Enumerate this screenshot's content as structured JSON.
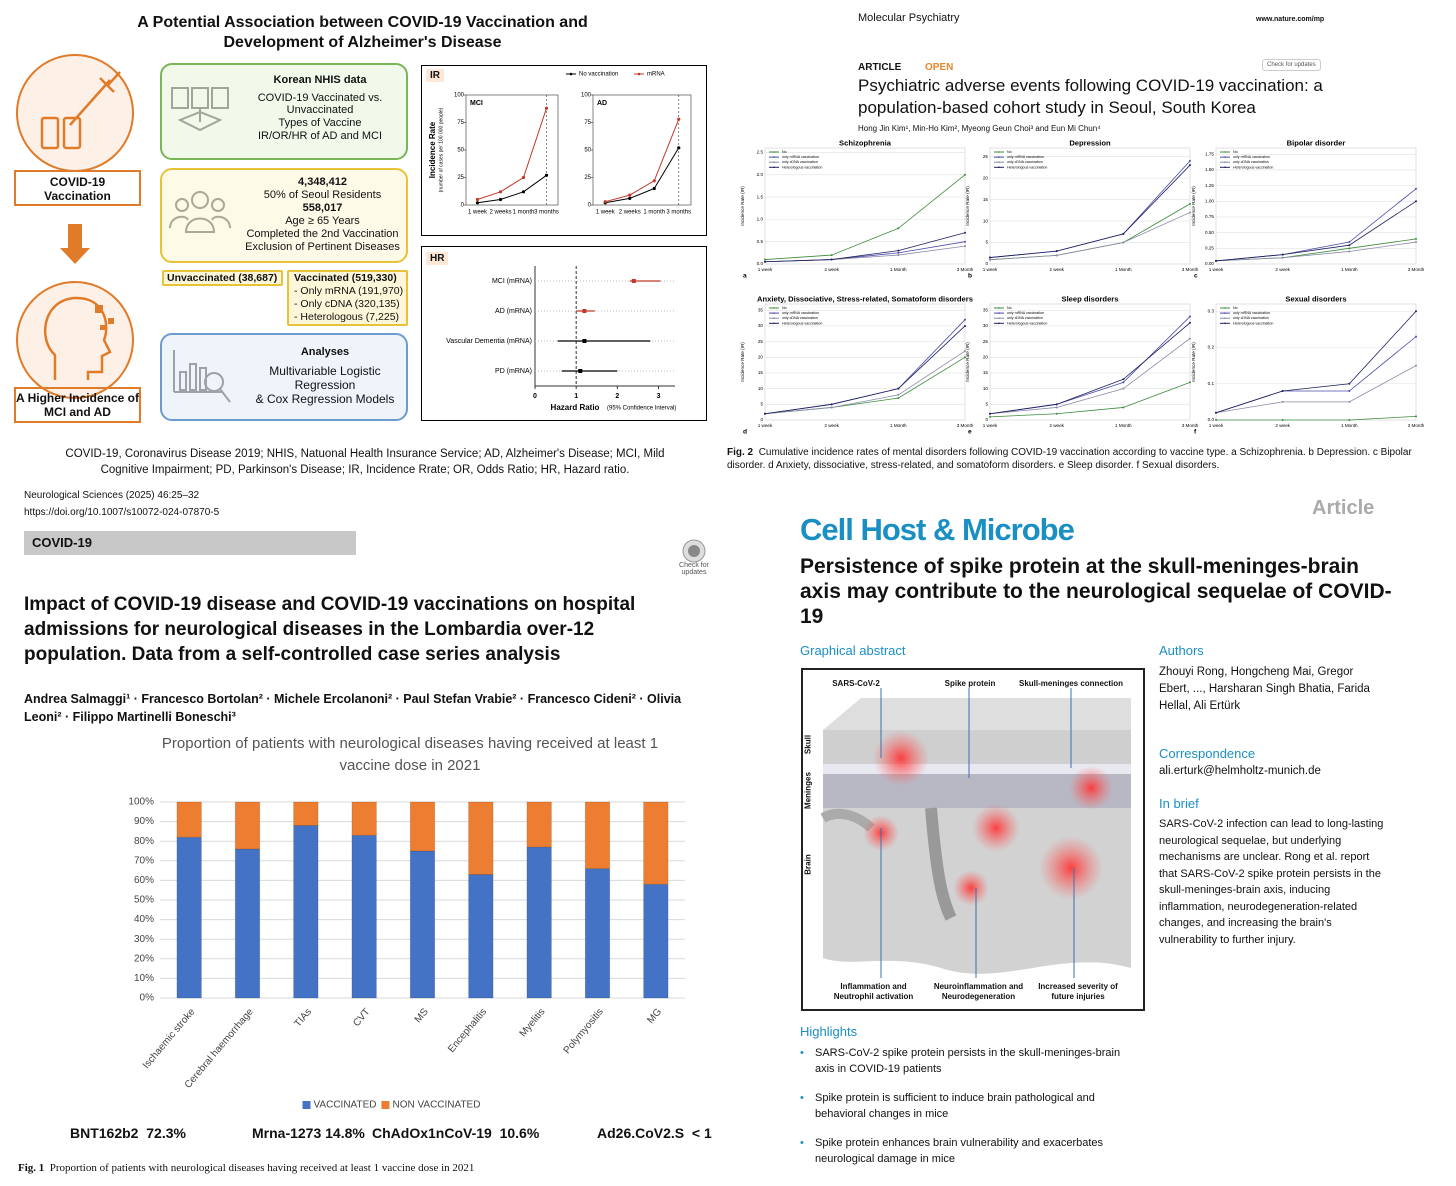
{
  "infographic": {
    "title": "A Potential Association between COVID-19 Vaccination and Development of Alzheimer's Disease",
    "exposure": "COVID-19 Vaccination",
    "outcome": "A Higher Incidence of MCI and AD",
    "data_box": {
      "heading": "Korean NHIS data",
      "lines": [
        "COVID-19 Vaccinated vs. Unvaccinated",
        "Types of Vaccine",
        "IR/OR/HR of AD and MCI"
      ]
    },
    "population_box": {
      "total": "4,348,412",
      "total_note": "50% of Seoul Residents",
      "cohort": "558,017",
      "criteria": [
        "Age ≥ 65 Years",
        "Completed the 2nd Vaccination",
        "Exclusion of Pertinent Diseases"
      ]
    },
    "unvaccinated": "Unvaccinated (38,687)",
    "vaccinated": {
      "heading": "Vaccinated (519,330)",
      "groups": [
        "- Only mRNA (191,970)",
        "- Only cDNA (320,135)",
        "- Heterologous (7,225)"
      ]
    },
    "analysis_box": {
      "heading": "Analyses",
      "lines": [
        "Multivariable Logistic Regression",
        "& Cox Regression Models"
      ]
    },
    "ir_label": "IR",
    "hr_label": "HR",
    "footnote": "COVID-19, Coronavirus Disease 2019; NHIS, Natuonal Health Insurance Service; AD, Alzheimer's Disease; MCI, Mild Cognitive Impairment; PD, Parkinson's Disease; IR, Incidence Rrate; OR, Odds Ratio; HR, Hazard ratio."
  },
  "psychiatry_article": {
    "journal": "Molecular Psychiatry",
    "url": "www.nature.com/mp",
    "kind": "ARTICLE",
    "access": "OPEN",
    "check": "Check for updates",
    "title": "Psychiatric adverse events following COVID-19 vaccination: a population-based cohort study in Seoul, South Korea",
    "authors": "Hong Jin Kim¹, Min-Ho Kim², Myeong Geun Choi³ and Eun Mi Chun⁴",
    "caption_label": "Fig. 2",
    "caption": "Cumulative incidence rates of mental disorders following COVID-19 vaccination according to vaccine type. a Schizophrenia. b Depression. c Bipolar disorder. d Anxiety, dissociative, stress-related, and somatoform disorders. e Sleep disorder. f Sexual disorders."
  },
  "neurology_article": {
    "journal": "Neurological Sciences (2025) 46:25–32",
    "doi": "https://doi.org/10.1007/s10072-024-07870-5",
    "section": "COVID-19",
    "check": "Check for updates",
    "title": "Impact of COVID-19 disease and COVID-19 vaccinations on hospital admissions for neurological diseases in the Lombardia over-12 population. Data from a self-controlled case series analysis",
    "authors": "Andrea Salmaggi¹ · Francesco Bortolan² · Michele Ercolanoni² · Paul Stefan Vrabie² · Francesco Cideni² · Olivia Leoni² · Filippo Martinelli Boneschi³",
    "vaccine_shares": [
      "BNT162b2  72.3%",
      "Mrna-1273 14.8%",
      "ChAdOx1nCoV-19  10.6%",
      "Ad26.CoV2.S  < 1"
    ],
    "caption_label": "Fig. 1",
    "caption": "Proportion of patients with neurological diseases having received at least 1 vaccine dose in 2021"
  },
  "cell_article": {
    "kind": "Article",
    "journal": "Cell Host & Microbe",
    "title": "Persistence of spike protein at the skull-meninges-brain axis may contribute to the neurological sequelae of COVID-19",
    "abstract_heading": "Graphical abstract",
    "diagram": {
      "top_labels": [
        "SARS-CoV-2",
        "Spike protein",
        "Skull-meninges connection"
      ],
      "side_labels": [
        "Skull",
        "Meninges",
        "Brain"
      ],
      "bottom_labels": [
        "Inflammation and Neutrophil activation",
        "Neuroinflammation and Neurodegeneration",
        "Increased severity of future injuries"
      ]
    },
    "authors_heading": "Authors",
    "authors": "Zhouyi Rong, Hongcheng Mai, Gregor Ebert, ..., Harsharan Singh Bhatia, Farida Hellal, Ali Ertürk",
    "correspondence_heading": "Correspondence",
    "correspondence": "ali.erturk@helmholtz-munich.de",
    "brief_heading": "In brief",
    "brief": "SARS-CoV-2 infection can lead to long-lasting neurological sequelae, but underlying mechanisms are unclear. Rong et al. report that SARS-CoV-2 spike protein persists in the skull-meninges-brain axis, inducing inflammation, neurodegeneration-related changes, and increasing the brain's vulnerability to further injury.",
    "highlights_heading": "Highlights",
    "highlights": [
      "SARS-CoV-2 spike protein persists in the skull-meninges-brain axis in COVID-19 patients",
      "Spike protein is sufficient to induce brain pathological and behavioral changes in mice",
      "Spike protein enhances brain vulnerability and exacerbates neurological damage in mice"
    ]
  },
  "chart_data": [
    {
      "type": "line",
      "title": "MCI",
      "ylabel": "Incidence Rate",
      "ylabel_note": "(number of cases per 100 000 people)",
      "categories": [
        "1 week",
        "2 weeks",
        "1 month",
        "3 months"
      ],
      "series": [
        {
          "name": "No vaccination",
          "color": "#000000",
          "values": [
            2,
            5,
            12,
            27
          ]
        },
        {
          "name": "mRNA",
          "color": "#c0392b",
          "values": [
            5,
            12,
            25,
            88
          ]
        }
      ],
      "ylim": [
        0,
        100
      ],
      "yticks": [
        0,
        25,
        50,
        75,
        100
      ],
      "legend": "top"
    },
    {
      "type": "line",
      "title": "AD",
      "categories": [
        "1 week",
        "2 weeks",
        "1 month",
        "3 months"
      ],
      "series": [
        {
          "color": "#000000",
          "values": [
            2,
            6,
            15,
            52
          ]
        },
        {
          "color": "#c0392b",
          "values": [
            3,
            9,
            22,
            78
          ]
        }
      ],
      "ylim": [
        0,
        100
      ],
      "yticks": [
        0,
        25,
        50,
        75,
        100
      ]
    },
    {
      "type": "forest",
      "categories": [
        "MCI (mRNA)",
        "AD (mRNA)",
        "Vascular Dementia (mRNA)",
        "PD (mRNA)"
      ],
      "values": [
        2.4,
        1.2,
        1.2,
        1.1
      ],
      "lower": [
        2.3,
        1.0,
        0.55,
        0.65
      ],
      "upper": [
        3.05,
        1.45,
        2.8,
        2.0
      ],
      "colors": [
        "#c0392b",
        "#c0392b",
        "#000000",
        "#000000"
      ],
      "xlim": [
        0,
        3.4
      ],
      "xticks": [
        0,
        1,
        2,
        3
      ],
      "xlabel": "Hazard Ratio",
      "xlabel_note": "(95% Confidence Interval)"
    },
    {
      "type": "line",
      "title": "Schizophrenia",
      "panel_label": "a",
      "ylabel": "Incidence Rate (IR)",
      "categories": [
        "1 week",
        "2 week",
        "1 Month",
        "3 Month"
      ],
      "series": [
        {
          "name": "No",
          "color": "#3d8b3d",
          "values": [
            0.1,
            0.2,
            0.8,
            2.0
          ]
        },
        {
          "name": "only mRNA vaccination",
          "color": "#4b4bab",
          "values": [
            0.05,
            0.1,
            0.25,
            0.5
          ]
        },
        {
          "name": "only cDNA vaccination",
          "color": "#8a8aa8",
          "values": [
            0.05,
            0.1,
            0.2,
            0.4
          ]
        },
        {
          "name": "Heterologous vaccination",
          "color": "#1f1f5e",
          "values": [
            0.05,
            0.1,
            0.3,
            0.7
          ]
        }
      ],
      "ylim": [
        0,
        2.6
      ],
      "yticks": [
        {
          "value": 0,
          "label": "0.0"
        },
        {
          "value": 0.5,
          "label": "0.5"
        },
        {
          "value": 1,
          "label": "1.0"
        },
        {
          "value": 1.5,
          "label": "1.5"
        },
        {
          "value": 2,
          "label": "2.0"
        },
        {
          "value": 2.5,
          "label": "2.5"
        }
      ],
      "grid": true,
      "legend": "upper left"
    },
    {
      "type": "line",
      "title": "Depression",
      "panel_label": "b",
      "ylabel": "Incidence Rate (IR)",
      "categories": [
        "1 week",
        "2 week",
        "1 Month",
        "3 Month"
      ],
      "series": [
        {
          "name": "No",
          "color": "#3d8b3d",
          "values": [
            1,
            2,
            5,
            14
          ]
        },
        {
          "name": "only mRNA vaccination",
          "color": "#4b4bab",
          "values": [
            1.5,
            3,
            7,
            24
          ]
        },
        {
          "name": "only cDNA vaccination",
          "color": "#8a8aa8",
          "values": [
            1,
            2,
            5,
            12
          ]
        },
        {
          "name": "Heterologous vaccination",
          "color": "#1f1f5e",
          "values": [
            1.5,
            3,
            7,
            23
          ]
        }
      ],
      "ylim": [
        0,
        27
      ],
      "yticks": [
        0,
        5,
        10,
        15,
        20,
        25
      ],
      "grid": true,
      "legend": "upper left"
    },
    {
      "type": "line",
      "title": "Bipolar disorder",
      "panel_label": "c",
      "ylabel": "Incidence Rate (IR)",
      "categories": [
        "1 week",
        "2 week",
        "1 Month",
        "3 Month"
      ],
      "series": [
        {
          "name": "No",
          "color": "#3d8b3d",
          "values": [
            0.05,
            0.1,
            0.25,
            0.4
          ]
        },
        {
          "name": "only mRNA vaccination",
          "color": "#4b4bab",
          "values": [
            0.05,
            0.15,
            0.35,
            1.2
          ]
        },
        {
          "name": "only cDNA vaccination",
          "color": "#8a8aa8",
          "values": [
            0.05,
            0.1,
            0.2,
            0.35
          ]
        },
        {
          "name": "Heterologous vaccination",
          "color": "#1f1f5e",
          "values": [
            0.05,
            0.15,
            0.3,
            1.0
          ]
        }
      ],
      "ylim": [
        0,
        1.85
      ],
      "yticks": [
        {
          "value": 0,
          "label": "0.00"
        },
        {
          "value": 0.25,
          "label": "0.25"
        },
        {
          "value": 0.5,
          "label": "0.50"
        },
        {
          "value": 0.75,
          "label": "0.75"
        },
        {
          "value": 1,
          "label": "1.00"
        },
        {
          "value": 1.25,
          "label": "1.25"
        },
        {
          "value": 1.5,
          "label": "1.50"
        },
        {
          "value": 1.75,
          "label": "1.75"
        }
      ],
      "grid": true,
      "legend": "upper left"
    },
    {
      "type": "line",
      "title": "Anxiety, Dissociative, Stress-related, Somatoform disorders",
      "panel_label": "d",
      "ylabel": "Incidence Rate (IR)",
      "categories": [
        "1 week",
        "2 week",
        "1 Month",
        "3 Month"
      ],
      "series": [
        {
          "name": "No",
          "color": "#3d8b3d",
          "values": [
            2,
            4,
            7,
            20
          ]
        },
        {
          "name": "only mRNA vaccination",
          "color": "#4b4bab",
          "values": [
            2,
            5,
            10,
            32
          ]
        },
        {
          "name": "only cDNA vaccination",
          "color": "#8a8aa8",
          "values": [
            2,
            4,
            8,
            22
          ]
        },
        {
          "name": "Heterologous vaccination",
          "color": "#1f1f5e",
          "values": [
            2,
            5,
            10,
            30
          ]
        }
      ],
      "ylim": [
        0,
        37
      ],
      "yticks": [
        0,
        5,
        10,
        15,
        20,
        25,
        30,
        35
      ],
      "grid": true,
      "legend": "upper left"
    },
    {
      "type": "line",
      "title": "Sleep disorders",
      "panel_label": "e",
      "ylabel": "Incidence Rate (IR)",
      "categories": [
        "1 week",
        "2 week",
        "1 Month",
        "3 Month"
      ],
      "series": [
        {
          "name": "No",
          "color": "#3d8b3d",
          "values": [
            1,
            2,
            4,
            12
          ]
        },
        {
          "name": "only mRNA vaccination",
          "color": "#4b4bab",
          "values": [
            2,
            5,
            12,
            33
          ]
        },
        {
          "name": "only cDNA vaccination",
          "color": "#8a8aa8",
          "values": [
            2,
            4,
            10,
            26
          ]
        },
        {
          "name": "Heterologous vaccination",
          "color": "#1f1f5e",
          "values": [
            2,
            5,
            13,
            31
          ]
        }
      ],
      "ylim": [
        0,
        37
      ],
      "yticks": [
        0,
        5,
        10,
        15,
        20,
        25,
        30,
        35
      ],
      "grid": true,
      "legend": "upper left"
    },
    {
      "type": "line",
      "title": "Sexual disorders",
      "panel_label": "f",
      "ylabel": "Incidence Rate (IR)",
      "categories": [
        "1 week",
        "2 week",
        "1 Month",
        "3 Month"
      ],
      "series": [
        {
          "name": "No",
          "color": "#3d8b3d",
          "values": [
            0,
            0,
            0,
            0.01
          ]
        },
        {
          "name": "only mRNA vaccination",
          "color": "#4b4bab",
          "values": [
            0.02,
            0.08,
            0.08,
            0.23
          ]
        },
        {
          "name": "only cDNA vaccination",
          "color": "#8a8aa8",
          "values": [
            0.02,
            0.05,
            0.05,
            0.15
          ]
        },
        {
          "name": "Heterologous vaccination",
          "color": "#1f1f5e",
          "values": [
            0.02,
            0.08,
            0.1,
            0.3
          ]
        }
      ],
      "ylim": [
        0,
        0.32
      ],
      "yticks": [
        {
          "value": 0,
          "label": "0.0"
        },
        {
          "value": 0.1,
          "label": "0.1"
        },
        {
          "value": 0.2,
          "label": "0.2"
        },
        {
          "value": 0.3,
          "label": "0.3"
        }
      ],
      "grid": true,
      "legend": "upper left"
    },
    {
      "type": "stacked_bar",
      "title": "Proportion of patients with neurological diseases having received at least 1 vaccine dose in 2021",
      "categories": [
        "Ischaemic stroke",
        "Cerebral haemorrhage",
        "TIAs",
        "CVT",
        "MS",
        "Encephalitis",
        "Myelitis",
        "Polymyositis",
        "MG"
      ],
      "series": [
        {
          "name": "VACCINATED",
          "color": "#4472c4",
          "values": [
            82,
            76,
            88,
            83,
            75,
            63,
            77,
            66,
            58
          ]
        },
        {
          "name": "NON VACCINATED",
          "color": "#ed7d31",
          "values": [
            18,
            24,
            12,
            17,
            25,
            37,
            23,
            34,
            42
          ]
        }
      ],
      "ylim": [
        0,
        100
      ],
      "yticks": [
        {
          "value": 0,
          "label": "0%"
        },
        {
          "value": 10,
          "label": "10%"
        },
        {
          "value": 20,
          "label": "20%"
        },
        {
          "value": 30,
          "label": "30%"
        },
        {
          "value": 40,
          "label": "40%"
        },
        {
          "value": 50,
          "label": "50%"
        },
        {
          "value": 60,
          "label": "60%"
        },
        {
          "value": 70,
          "label": "70%"
        },
        {
          "value": 80,
          "label": "80%"
        },
        {
          "value": 90,
          "label": "90%"
        },
        {
          "value": 100,
          "label": "100%"
        }
      ],
      "grid": true,
      "legend": "bottom"
    }
  ]
}
